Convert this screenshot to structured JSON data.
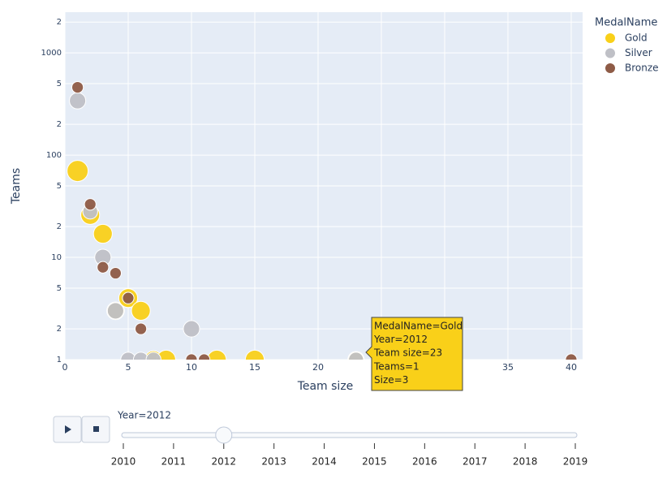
{
  "chart_data": {
    "type": "scatter",
    "x_label": "Team size",
    "y_label": "Teams",
    "legend_title": "MedalName",
    "legend_position": "right",
    "grid": true,
    "log_y": true,
    "xlim": [
      0,
      40.9
    ],
    "ylim": [
      1,
      2500
    ],
    "xticks": [
      0,
      5,
      10,
      15,
      20,
      25,
      30,
      35,
      40
    ],
    "yticks": [
      1,
      2,
      5,
      10,
      {
        "value": 20,
        "label": "2"
      },
      {
        "value": 50,
        "label": "5"
      },
      100,
      {
        "value": 200,
        "label": "2"
      },
      {
        "value": 500,
        "label": "5"
      },
      1000,
      {
        "value": 2000,
        "label": "2"
      }
    ],
    "series": [
      {
        "name": "Gold",
        "color": "#f9d019",
        "x": [
          1,
          2,
          3,
          4,
          5,
          6,
          7,
          8,
          12,
          15,
          23
        ],
        "values": [
          70,
          26,
          17,
          3,
          4,
          3,
          1,
          1,
          1,
          1,
          1
        ],
        "size": [
          5,
          4,
          4,
          3.5,
          4,
          4,
          3.5,
          4,
          4,
          4,
          3
        ]
      },
      {
        "name": "Silver",
        "color": "#bfc0c6",
        "x": [
          1,
          2,
          3,
          4,
          5,
          6,
          7,
          10,
          23
        ],
        "values": [
          340,
          28,
          10,
          3,
          1,
          1,
          1,
          2,
          1
        ],
        "size": [
          3,
          2.5,
          3,
          3,
          2.5,
          2.5,
          2.5,
          3,
          2.5
        ]
      },
      {
        "name": "Bronze",
        "color": "#8e5b46",
        "x": [
          1,
          2,
          3,
          4,
          5,
          6,
          10,
          11,
          40
        ],
        "values": [
          460,
          33,
          8,
          7,
          4,
          2,
          1,
          1,
          1
        ],
        "size": [
          1.5,
          1.5,
          1.5,
          1.5,
          1.5,
          1.5,
          1.5,
          1.5,
          1.5
        ]
      }
    ],
    "tooltip": {
      "lines": [
        "MedalName=Gold",
        "Year=2012",
        "Team size=23",
        "Teams=1",
        "Size=3"
      ]
    },
    "slider": {
      "current_label": "Year=2012",
      "value": 2012,
      "steps": [
        2010,
        2011,
        2012,
        2013,
        2014,
        2015,
        2016,
        2017,
        2018,
        2019
      ]
    }
  }
}
